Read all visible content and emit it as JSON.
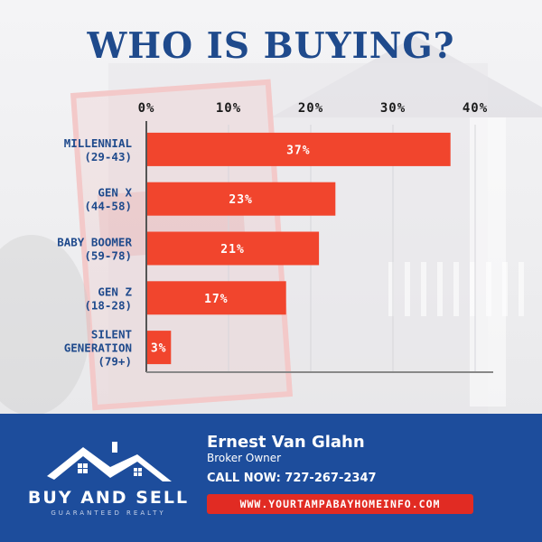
{
  "header": {
    "title": "WHO IS BUYING?"
  },
  "chart_data": {
    "type": "bar",
    "orientation": "horizontal",
    "categories": [
      [
        "MILLENNIAL",
        "(29-43)"
      ],
      [
        "GEN X",
        "(44-58)"
      ],
      [
        "BABY BOOMER",
        "(59-78)"
      ],
      [
        "GEN Z",
        "(18-28)"
      ],
      [
        "SILENT",
        "GENERATION",
        "(79+)"
      ]
    ],
    "values": [
      37,
      23,
      21,
      17,
      3
    ],
    "data_labels": [
      "37%",
      "23%",
      "21%",
      "17%",
      "3%"
    ],
    "xlim": [
      0,
      40
    ],
    "ticks": [
      0,
      10,
      20,
      30,
      40
    ],
    "tick_labels": [
      "0%",
      "10%",
      "20%",
      "30%",
      "40%"
    ],
    "axis_position": "top",
    "grid": true,
    "bar_color": "#f1452d",
    "label_color": "#1f4a8c"
  },
  "footer": {
    "brand": "BUY AND SELL",
    "tagline": "GUARANTEED REALTY",
    "agent_name": "Ernest Van Glahn",
    "agent_role": "Broker Owner",
    "phone": "CALL NOW: 727-267-2347",
    "url": "WWW.YOURTAMPABAYHOMEINFO.COM",
    "colors": {
      "footer_bg": "#1d4d9c",
      "url_bg": "#e12b23"
    }
  }
}
